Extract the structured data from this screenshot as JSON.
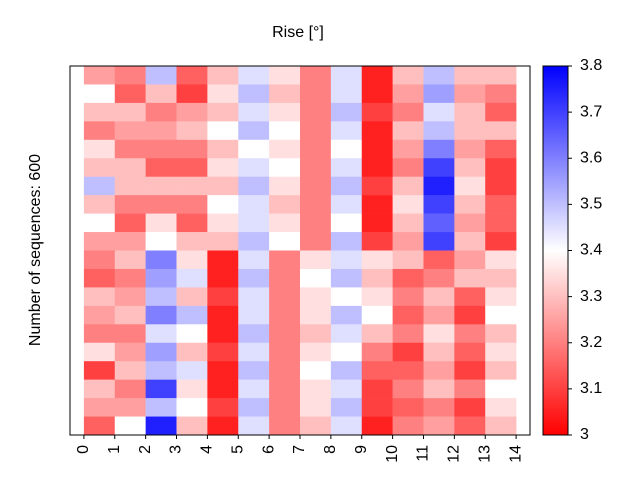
{
  "chart_data": {
    "type": "heatmap",
    "title": "Rise [°]",
    "ylabel": "Number of sequences: 600",
    "cmap": "bwr",
    "clim": [
      3,
      3.8
    ],
    "cticks": [
      3,
      3.1,
      3.2,
      3.3,
      3.4,
      3.5,
      3.6,
      3.7,
      3.8
    ],
    "xlim": [
      -0.45,
      14.45
    ],
    "xticks": [
      0,
      1,
      2,
      3,
      4,
      5,
      6,
      7,
      8,
      9,
      10,
      11,
      12,
      13,
      14
    ],
    "values": [
      [
        3.25,
        3.4,
        3.3,
        3.2,
        3.35,
        3.3,
        3.5,
        3.3,
        3.4,
        3.25,
        3.2,
        3.15,
        3.3,
        3.25,
        3.2,
        3.35,
        3.1,
        3.3,
        3.25,
        3.15
      ],
      [
        3.2,
        3.15,
        3.3,
        3.25,
        3.2,
        3.3,
        3.3,
        3.2,
        3.15,
        3.25,
        3.3,
        3.2,
        3.25,
        3.3,
        3.2,
        3.25,
        3.3,
        3.2,
        3.25,
        3.4
      ],
      [
        3.5,
        3.3,
        3.2,
        3.25,
        3.2,
        3.15,
        3.3,
        3.2,
        3.35,
        3.4,
        3.6,
        3.55,
        3.5,
        3.6,
        3.45,
        3.55,
        3.5,
        3.7,
        3.5,
        3.75
      ],
      [
        3.15,
        3.1,
        3.25,
        3.3,
        3.2,
        3.15,
        3.3,
        3.2,
        3.15,
        3.3,
        3.35,
        3.45,
        3.3,
        3.5,
        3.4,
        3.3,
        3.45,
        3.35,
        3.4,
        3.3
      ],
      [
        3.3,
        3.35,
        3.3,
        3.4,
        3.3,
        3.35,
        3.3,
        3.4,
        3.35,
        3.3,
        3.05,
        3.05,
        3.1,
        3.05,
        3.05,
        3.1,
        3.05,
        3.05,
        3.1,
        3.05
      ],
      [
        3.45,
        3.5,
        3.45,
        3.5,
        3.4,
        3.45,
        3.5,
        3.45,
        3.45,
        3.5,
        3.45,
        3.5,
        3.45,
        3.45,
        3.5,
        3.45,
        3.5,
        3.45,
        3.5,
        3.45
      ],
      [
        3.35,
        3.3,
        3.35,
        3.4,
        3.35,
        3.4,
        3.35,
        3.3,
        3.35,
        3.4,
        3.2,
        3.2,
        3.2,
        3.2,
        3.2,
        3.2,
        3.2,
        3.2,
        3.2,
        3.2
      ],
      [
        3.2,
        3.2,
        3.2,
        3.2,
        3.2,
        3.2,
        3.2,
        3.2,
        3.2,
        3.2,
        3.35,
        3.4,
        3.35,
        3.35,
        3.3,
        3.35,
        3.4,
        3.35,
        3.35,
        3.3
      ],
      [
        3.45,
        3.45,
        3.5,
        3.45,
        3.4,
        3.45,
        3.5,
        3.45,
        3.4,
        3.5,
        3.45,
        3.5,
        3.4,
        3.5,
        3.45,
        3.4,
        3.5,
        3.45,
        3.5,
        3.45
      ],
      [
        3.05,
        3.05,
        3.1,
        3.05,
        3.05,
        3.05,
        3.1,
        3.05,
        3.05,
        3.1,
        3.35,
        3.3,
        3.35,
        3.4,
        3.3,
        3.2,
        3.15,
        3.1,
        3.1,
        3.05
      ],
      [
        3.3,
        3.25,
        3.2,
        3.3,
        3.25,
        3.2,
        3.3,
        3.35,
        3.3,
        3.25,
        3.3,
        3.15,
        3.2,
        3.15,
        3.2,
        3.1,
        3.15,
        3.2,
        3.15,
        3.2
      ],
      [
        3.5,
        3.55,
        3.45,
        3.5,
        3.6,
        3.7,
        3.75,
        3.7,
        3.65,
        3.7,
        3.15,
        3.2,
        3.3,
        3.25,
        3.35,
        3.3,
        3.25,
        3.3,
        3.2,
        3.25
      ],
      [
        3.3,
        3.25,
        3.3,
        3.3,
        3.25,
        3.3,
        3.35,
        3.3,
        3.25,
        3.3,
        3.25,
        3.3,
        3.15,
        3.1,
        3.2,
        3.15,
        3.1,
        3.2,
        3.1,
        3.15
      ],
      [
        3.3,
        3.2,
        3.15,
        3.3,
        3.15,
        3.1,
        3.1,
        3.15,
        3.15,
        3.1,
        3.35,
        3.3,
        3.35,
        3.4,
        3.3,
        3.35,
        3.3,
        3.4,
        3.35,
        3.3
      ]
    ]
  }
}
